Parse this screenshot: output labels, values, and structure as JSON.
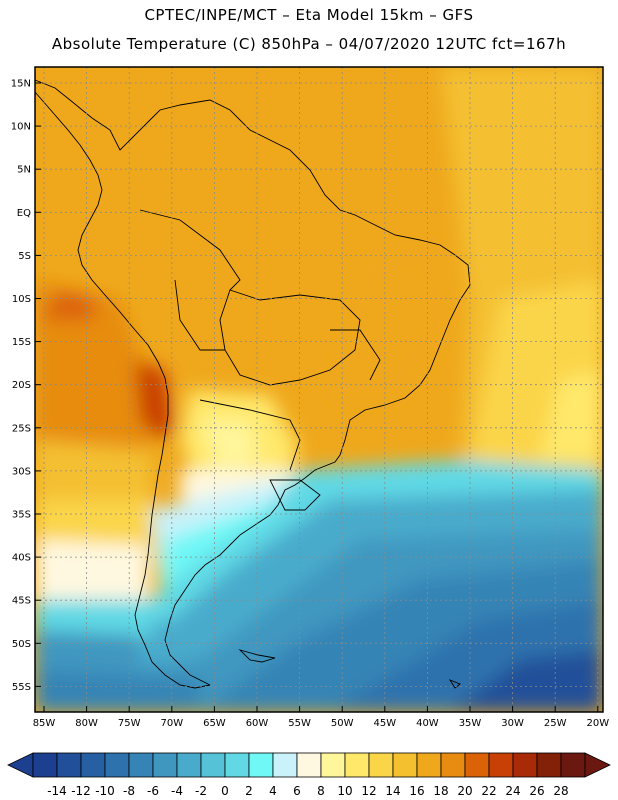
{
  "header": {
    "line1": "CPTEC/INPE/MCT –  Eta Model 15km – GFS",
    "line2": "Absolute Temperature (C) 850hPa – 04/07/2020 12UTC fct=167h"
  },
  "map": {
    "lat_labels": [
      "15N",
      "10N",
      "5N",
      "EQ",
      "5S",
      "10S",
      "15S",
      "20S",
      "25S",
      "30S",
      "35S",
      "40S",
      "45S",
      "50S",
      "55S"
    ],
    "lon_labels": [
      "85W",
      "80W",
      "75W",
      "70W",
      "65W",
      "60W",
      "55W",
      "50W",
      "45W",
      "40W",
      "35W",
      "30W",
      "25W",
      "20W"
    ]
  },
  "colorbar": {
    "labels": [
      "-14",
      "-12",
      "-10",
      "-8",
      "-6",
      "-4",
      "-2",
      "0",
      "2",
      "4",
      "6",
      "8",
      "10",
      "12",
      "14",
      "16",
      "18",
      "20",
      "22",
      "24",
      "26",
      "28"
    ],
    "colors": [
      "#1d3f8f",
      "#214f99",
      "#2660a3",
      "#2e72ad",
      "#3684b6",
      "#3f97c0",
      "#49abcc",
      "#55c2d8",
      "#61d9e5",
      "#6ff8f6",
      "#c9f2fb",
      "#fff8e0",
      "#fff59a",
      "#ffe86a",
      "#fbd548",
      "#f4c030",
      "#efa81c",
      "#e78c10",
      "#dc6208",
      "#c94006",
      "#a82a06",
      "#832008",
      "#6b1810"
    ]
  }
}
